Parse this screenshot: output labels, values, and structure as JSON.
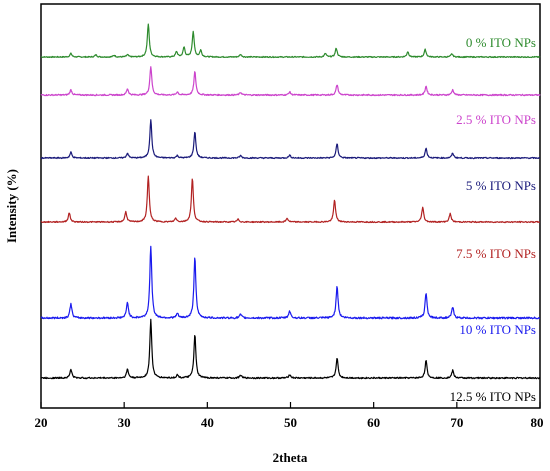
{
  "chart_data": {
    "type": "line",
    "xlabel": "2theta",
    "ylabel": "Intensity (%)",
    "xlim": [
      20,
      80
    ],
    "x_ticks": [
      "20",
      "30",
      "40",
      "50",
      "60",
      "70",
      "80"
    ],
    "grid": false,
    "legend": "inline labels at right",
    "series": [
      {
        "name": "0 % ITO NPs",
        "color": "#2e8b2e",
        "peaks": [
          [
            23.6,
            0.08
          ],
          [
            26.6,
            0.05
          ],
          [
            28.8,
            0.04
          ],
          [
            30.4,
            0.05
          ],
          [
            32.9,
            0.75
          ],
          [
            36.3,
            0.12
          ],
          [
            37.2,
            0.22
          ],
          [
            38.3,
            0.58
          ],
          [
            39.2,
            0.15
          ],
          [
            44.0,
            0.06
          ],
          [
            54.2,
            0.08
          ],
          [
            55.5,
            0.2
          ],
          [
            64.1,
            0.12
          ],
          [
            66.2,
            0.17
          ],
          [
            69.4,
            0.07
          ]
        ]
      },
      {
        "name": "2.5 % ITO NPs",
        "color": "#cc44cc",
        "peaks": [
          [
            23.6,
            0.1
          ],
          [
            30.4,
            0.12
          ],
          [
            33.2,
            0.55
          ],
          [
            36.4,
            0.06
          ],
          [
            38.5,
            0.45
          ],
          [
            44.0,
            0.05
          ],
          [
            49.9,
            0.06
          ],
          [
            55.6,
            0.2
          ],
          [
            66.3,
            0.17
          ],
          [
            69.5,
            0.1
          ]
        ]
      },
      {
        "name": "5 % ITO NPs",
        "color": "#1a1a7a",
        "peaks": [
          [
            23.6,
            0.12
          ],
          [
            30.4,
            0.1
          ],
          [
            33.2,
            0.8
          ],
          [
            36.4,
            0.05
          ],
          [
            38.5,
            0.55
          ],
          [
            44.0,
            0.05
          ],
          [
            49.9,
            0.06
          ],
          [
            55.6,
            0.3
          ],
          [
            66.3,
            0.2
          ],
          [
            69.5,
            0.1
          ]
        ]
      },
      {
        "name": "7.5 % ITO NPs",
        "color": "#b22222",
        "peaks": [
          [
            23.4,
            0.2
          ],
          [
            30.2,
            0.22
          ],
          [
            32.9,
            1.0
          ],
          [
            36.2,
            0.08
          ],
          [
            38.2,
            0.95
          ],
          [
            43.7,
            0.06
          ],
          [
            49.6,
            0.08
          ],
          [
            55.3,
            0.48
          ],
          [
            65.9,
            0.32
          ],
          [
            69.2,
            0.18
          ]
        ]
      },
      {
        "name": "10 % ITO NPs",
        "color": "#1a1aee",
        "peaks": [
          [
            23.6,
            0.2
          ],
          [
            30.4,
            0.22
          ],
          [
            33.2,
            1.0
          ],
          [
            36.4,
            0.06
          ],
          [
            38.5,
            0.85
          ],
          [
            44.0,
            0.05
          ],
          [
            49.9,
            0.1
          ],
          [
            55.6,
            0.45
          ],
          [
            66.3,
            0.35
          ],
          [
            69.5,
            0.15
          ]
        ]
      },
      {
        "name": "12.5 % ITO NPs",
        "color": "#000000",
        "peaks": [
          [
            23.6,
            0.15
          ],
          [
            30.4,
            0.15
          ],
          [
            33.2,
            1.0
          ],
          [
            36.4,
            0.05
          ],
          [
            38.5,
            0.75
          ],
          [
            44.0,
            0.05
          ],
          [
            49.9,
            0.06
          ],
          [
            55.6,
            0.35
          ],
          [
            66.3,
            0.3
          ],
          [
            69.5,
            0.13
          ]
        ]
      }
    ]
  }
}
